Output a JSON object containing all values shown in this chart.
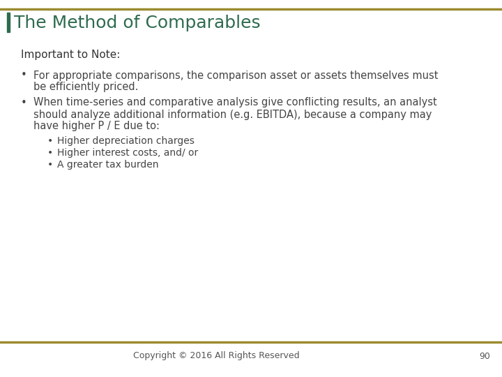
{
  "title": "The Method of Comparables",
  "title_color": "#2E6B4F",
  "title_fontsize": 18,
  "background_color": "#FFFFFF",
  "border_color": "#9B8B30",
  "left_bar_color": "#2E6B4F",
  "section_header": "Important to Note:",
  "section_header_color": "#333333",
  "section_header_fontsize": 11,
  "bullet_color": "#444444",
  "bullet_fontsize": 10.5,
  "bullet1_line1": "For appropriate comparisons, the comparison asset or assets themselves must",
  "bullet1_line2": "be efficiently priced.",
  "bullet2_line1": "When time-series and comparative analysis give conflicting results, an analyst",
  "bullet2_line2": "should analyze additional information (e.g. EBITDA), because a company may",
  "bullet2_line3": "have higher P / E due to:",
  "sub_bullet1": "Higher depreciation charges",
  "sub_bullet2": "Higher interest costs, and/ or",
  "sub_bullet3": "A greater tax burden",
  "footer_text": "Copyright © 2016 All Rights Reserved",
  "footer_page": "90",
  "footer_color": "#555555",
  "footer_fontsize": 9
}
